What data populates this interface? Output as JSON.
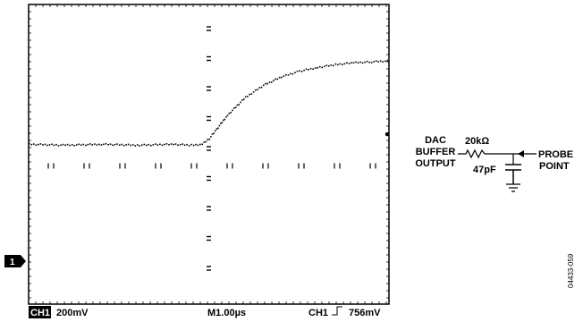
{
  "chart_data": {
    "type": "line",
    "x": [
      -5.0,
      -4.0,
      -3.0,
      -2.0,
      -1.0,
      -0.5,
      -0.2,
      0.0,
      0.2,
      0.5,
      1.0,
      1.5,
      2.0,
      2.5,
      3.0,
      3.5,
      4.0,
      4.5,
      5.0
    ],
    "y": [
      -0.0,
      -0.005,
      0.0,
      -0.005,
      0.0,
      -0.005,
      0.0,
      0.03,
      0.08,
      0.155,
      0.25,
      0.315,
      0.36,
      0.39,
      0.41,
      0.425,
      0.435,
      0.44,
      0.445
    ],
    "xlim": [
      -5.0,
      5.0
    ],
    "ylim": [
      -0.8,
      0.8
    ],
    "grid": false
  },
  "status_bar": {
    "channel_badge": "CH1",
    "volts_per_div": "200mV",
    "timebase": "M1.00µs",
    "trigger_channel": "CH1",
    "trigger_level": "756mV"
  },
  "marker": {
    "ground_marker": "1"
  },
  "schematic": {
    "source_label": [
      "DAC",
      "BUFFER",
      "OUTPUT"
    ],
    "resistor": "20kΩ",
    "capacitor": "47pF",
    "probe_label": [
      "PROBE",
      "POINT"
    ]
  },
  "figure_id": "04433-059"
}
